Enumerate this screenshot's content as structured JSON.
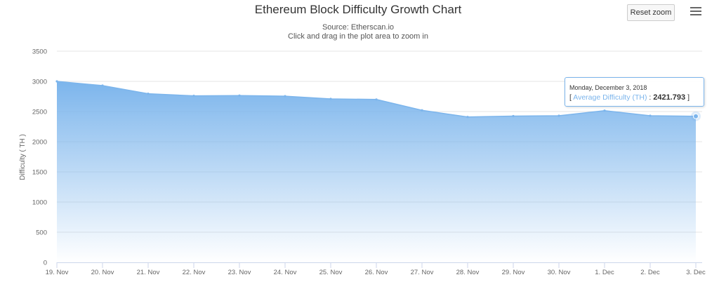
{
  "chart_data": {
    "type": "area",
    "title": "Ethereum Block Difficulty Growth Chart",
    "subtitle_lines": [
      "Source: Etherscan.io",
      "Click and drag in the plot area to zoom in"
    ],
    "ylabel": "Difficulty ( TH )",
    "xlabel": "",
    "ylim": [
      0,
      3500
    ],
    "yticks": [
      0,
      500,
      1000,
      1500,
      2000,
      2500,
      3000,
      3500
    ],
    "categories": [
      "19. Nov",
      "20. Nov",
      "21. Nov",
      "22. Nov",
      "23. Nov",
      "24. Nov",
      "25. Nov",
      "26. Nov",
      "27. Nov",
      "28. Nov",
      "29. Nov",
      "30. Nov",
      "1. Dec",
      "2. Dec",
      "3. Dec"
    ],
    "series": [
      {
        "name": "Average Difficulty (TH)",
        "values": [
          3000,
          2930,
          2795,
          2760,
          2765,
          2755,
          2710,
          2700,
          2520,
          2410,
          2425,
          2430,
          2515,
          2430,
          2421.793
        ]
      }
    ],
    "grid": true,
    "legend": "none"
  },
  "toolbar": {
    "reset_zoom_label": "Reset zoom"
  },
  "tooltip": {
    "date": "Monday, December 3, 2018",
    "open_bracket": "[ ",
    "series_label": "Average Difficulty (TH)",
    "separator": " : ",
    "value": "2421.793",
    "close_bracket": " ]"
  },
  "colors": {
    "series": "#7cb5ec",
    "grid": "#e6e6e6",
    "axis": "#ccd6eb"
  },
  "icons": {
    "menu": "hamburger-menu-icon"
  }
}
